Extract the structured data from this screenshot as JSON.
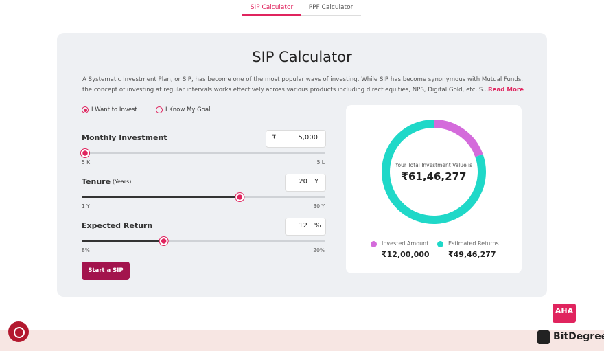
{
  "tabs": [
    {
      "label": "SIP Calculator",
      "active": true
    },
    {
      "label": "PPF Calculator",
      "active": false
    }
  ],
  "card": {
    "title": "SIP Calculator",
    "description": [
      "A Systematic Investment Plan, or SIP, has become one of the most popular ways of investing. While SIP has become synonymous with Mutual Funds,",
      "the concept of investing at regular intervals works effectively across various products including direct equities, NPS, Digital Gold, etc. S..."
    ],
    "read_more": "Read More",
    "modes": [
      {
        "label": "I Want to Invest",
        "selected": true
      },
      {
        "label": "I Know My Goal",
        "selected": false
      }
    ],
    "inputs": [
      {
        "label": "Monthly Investment",
        "prefix": "₹",
        "value": {
          "value": 5000,
          "label": "5,000"
        },
        "min": {
          "value": 5000,
          "label": "5 K"
        },
        "max": {
          "value": 500000,
          "label": "5 L"
        }
      },
      {
        "label": "Tenure",
        "label_unit": "(Years)",
        "suffix": "Y",
        "value": 20,
        "min": {
          "value": 1,
          "label": "1 Y"
        },
        "max": {
          "value": 30,
          "label": "30 Y"
        }
      },
      {
        "label": "Expected Return",
        "suffix": "%",
        "value": 12,
        "min": {
          "value": 8,
          "label": "8%"
        },
        "max": {
          "value": 20,
          "label": "20%"
        }
      }
    ],
    "button": "Start a SIP",
    "result": {
      "caption": "Your Total Investment Value is",
      "total": "₹61,46,277",
      "segments": [
        {
          "name": "Invested Amount",
          "color": "#d46bdb",
          "value": 1200000,
          "value_label": "₹12,00,000"
        },
        {
          "name": "Estimated Returns",
          "color": "#1fd8c8",
          "value": 4946277,
          "value_label": "₹49,46,277"
        }
      ]
    }
  },
  "badge": "AHA",
  "logo": "BitDegree"
}
